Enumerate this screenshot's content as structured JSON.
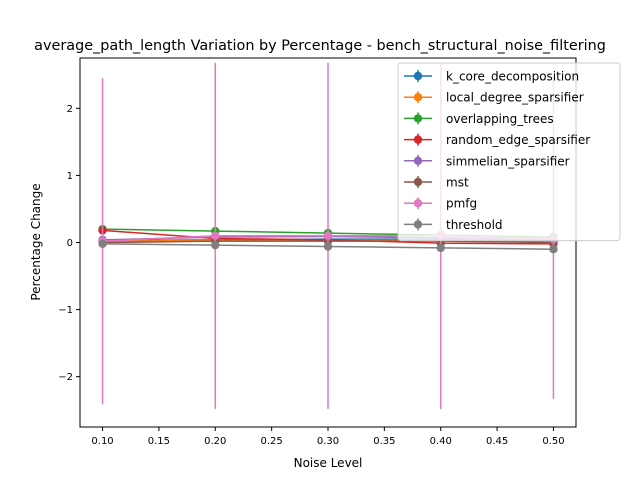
{
  "chart_data": {
    "type": "line",
    "title": "average_path_length Variation by Percentage - bench_structural_noise_filtering",
    "xlabel": "Noise Level",
    "ylabel": "Percentage Change",
    "x": [
      0.1,
      0.2,
      0.3,
      0.4,
      0.5
    ],
    "x_ticks": [
      "0.10",
      "0.15",
      "0.20",
      "0.25",
      "0.30",
      "0.35",
      "0.40",
      "0.45",
      "0.50"
    ],
    "y_ticks": [
      "−2",
      "−1",
      "0",
      "1",
      "2"
    ],
    "xlim": [
      0.08,
      0.52
    ],
    "ylim": [
      -2.75,
      2.75
    ],
    "grid": false,
    "legend_position": "top-right",
    "series": [
      {
        "name": "k_core_decomposition",
        "color": "#1f77b4",
        "values": [
          0.03,
          0.04,
          0.05,
          0.05,
          0.05
        ],
        "err": [
          0.02,
          0.02,
          0.02,
          0.02,
          0.02
        ]
      },
      {
        "name": "local_degree_sparsifier",
        "color": "#ff7f0e",
        "values": [
          0.02,
          0.03,
          0.03,
          0.03,
          0.02
        ],
        "err": [
          0.02,
          0.02,
          0.02,
          0.02,
          0.02
        ]
      },
      {
        "name": "overlapping_trees",
        "color": "#2ca02c",
        "values": [
          0.2,
          0.17,
          0.14,
          0.11,
          0.08
        ],
        "err": [
          0.02,
          0.02,
          0.02,
          0.02,
          0.02
        ]
      },
      {
        "name": "random_edge_sparsifier",
        "color": "#d62728",
        "values": [
          0.18,
          0.06,
          0.04,
          -0.01,
          -0.02
        ],
        "err": [
          0.02,
          0.02,
          0.02,
          0.02,
          0.02
        ]
      },
      {
        "name": "simmelian_sparsifier",
        "color": "#9467bd",
        "values": [
          0.04,
          0.08,
          0.09,
          0.07,
          0.04
        ],
        "err": [
          0.02,
          0.02,
          0.02,
          0.02,
          0.02
        ]
      },
      {
        "name": "mst",
        "color": "#8c564b",
        "values": [
          0.0,
          0.02,
          0.02,
          0.02,
          0.0
        ],
        "err": [
          0.02,
          0.02,
          0.02,
          0.02,
          0.02
        ]
      },
      {
        "name": "pmfg",
        "color": "#e377c2",
        "values": [
          0.02,
          0.1,
          0.1,
          0.1,
          0.05
        ],
        "err": [
          2.43,
          2.58,
          2.58,
          2.58,
          2.38
        ]
      },
      {
        "name": "threshold",
        "color": "#7f7f7f",
        "values": [
          -0.02,
          -0.04,
          -0.06,
          -0.08,
          -0.1
        ],
        "err": [
          0.02,
          0.02,
          0.02,
          0.02,
          0.02
        ]
      }
    ]
  }
}
